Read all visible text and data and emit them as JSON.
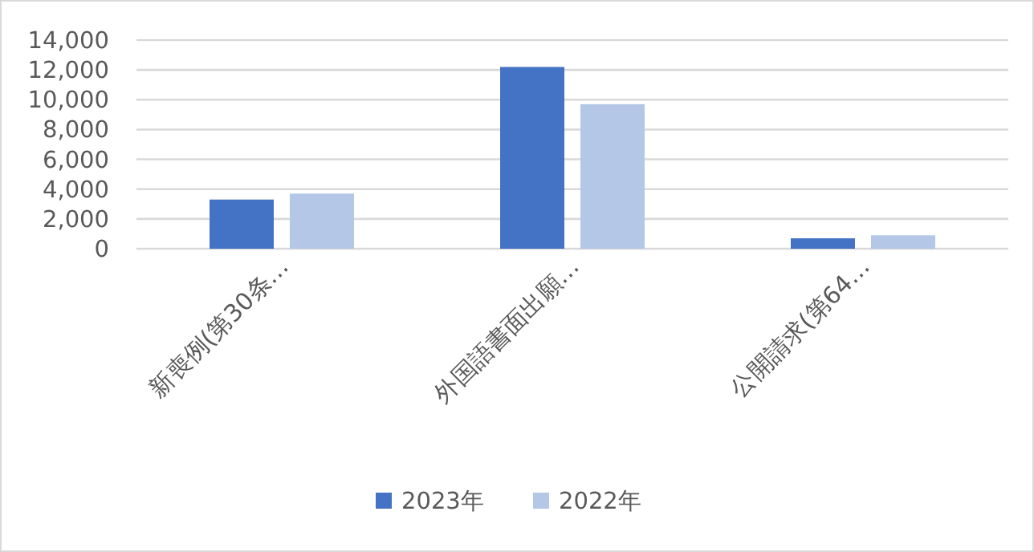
{
  "chart_data": {
    "type": "bar",
    "categories": [
      "新喪例(第30条…",
      "外国語書面出願…",
      "公開請求(第64…"
    ],
    "series": [
      {
        "name": "2023年",
        "color": "#4472c4",
        "values": [
          3300,
          12200,
          700
        ]
      },
      {
        "name": "2022年",
        "color": "#b4c7e7",
        "values": [
          3700,
          9700,
          900
        ]
      }
    ],
    "ylim": [
      0,
      14000
    ],
    "yticks": [
      {
        "value": 0,
        "label": "0"
      },
      {
        "value": 2000,
        "label": "2,000"
      },
      {
        "value": 4000,
        "label": "4,000"
      },
      {
        "value": 6000,
        "label": "6,000"
      },
      {
        "value": 8000,
        "label": "8,000"
      },
      {
        "value": 10000,
        "label": "10,000"
      },
      {
        "value": 12000,
        "label": "12,000"
      },
      {
        "value": 14000,
        "label": "14,000"
      }
    ],
    "grid": "y",
    "legend": "bottom"
  }
}
